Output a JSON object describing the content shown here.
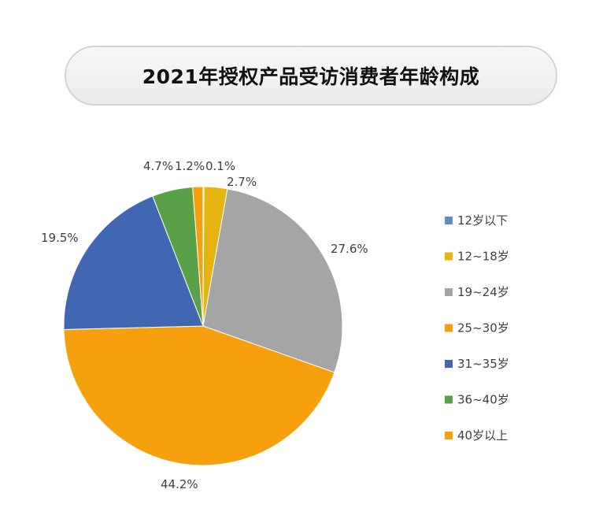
{
  "title": "2021年授权产品受访消费者年龄构成",
  "chart_data": {
    "type": "pie",
    "title": "2021年授权产品受访消费者年龄构成",
    "categories": [
      "12岁以下",
      "12~18岁",
      "19~24岁",
      "25~30岁",
      "31~35岁",
      "36~40岁",
      "40岁以上"
    ],
    "values": [
      0.1,
      2.7,
      27.6,
      44.2,
      19.5,
      4.7,
      1.2
    ],
    "value_labels": [
      "0.1%",
      "2.7%",
      "27.6%",
      "44.2%",
      "19.5%",
      "4.7%",
      "1.2%"
    ],
    "colors": [
      "#5b8fc9",
      "#e5b50e",
      "#a5a5a5",
      "#f5a00c",
      "#4267b2",
      "#5aa046",
      "#f5a00c"
    ],
    "legend_placement": "right",
    "start": "top (12 o'clock)",
    "direction": "clockwise"
  }
}
